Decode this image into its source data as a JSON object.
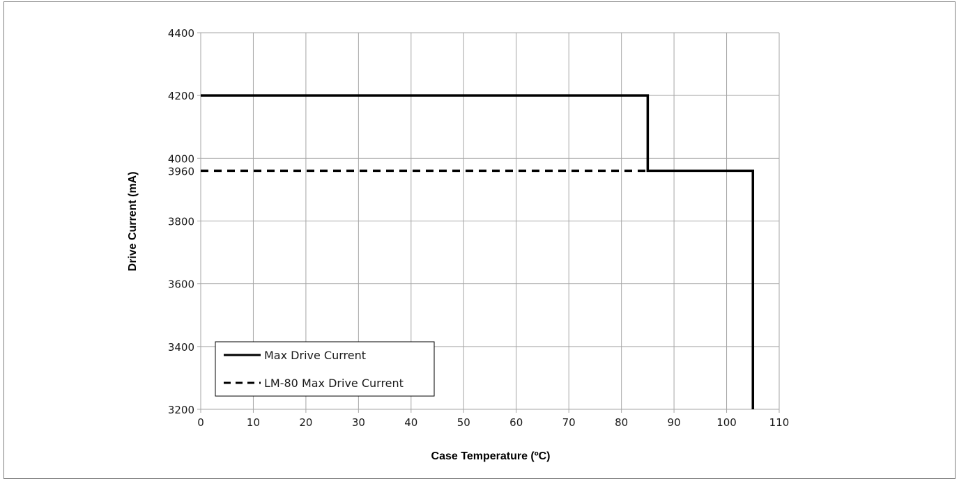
{
  "chart_data": {
    "type": "line",
    "title": "",
    "xlabel": "Case Temperature (ºC)",
    "ylabel": "Drive Current (mA)",
    "xlim": [
      0,
      110
    ],
    "ylim": [
      3200,
      4400
    ],
    "x_ticks": [
      0,
      10,
      20,
      30,
      40,
      50,
      60,
      70,
      80,
      90,
      100,
      110
    ],
    "y_ticks": [
      3200,
      3400,
      3600,
      3800,
      4000,
      4200,
      4400
    ],
    "y_extra_ticks": [
      3960
    ],
    "grid": true,
    "legend_position": "bottom-left",
    "series": [
      {
        "name": "Max Drive Current",
        "style": "solid",
        "color": "#000000",
        "points": [
          [
            0,
            4200
          ],
          [
            85,
            4200
          ],
          [
            85,
            3960
          ],
          [
            105,
            3960
          ],
          [
            105,
            3200
          ]
        ]
      },
      {
        "name": "LM-80 Max Drive Current",
        "style": "dashed",
        "color": "#000000",
        "points": [
          [
            0,
            3960
          ],
          [
            85,
            3960
          ]
        ]
      }
    ]
  },
  "colors": {
    "grid": "#a6a6a6",
    "frame": "#7f7f7f",
    "line": "#000000"
  }
}
